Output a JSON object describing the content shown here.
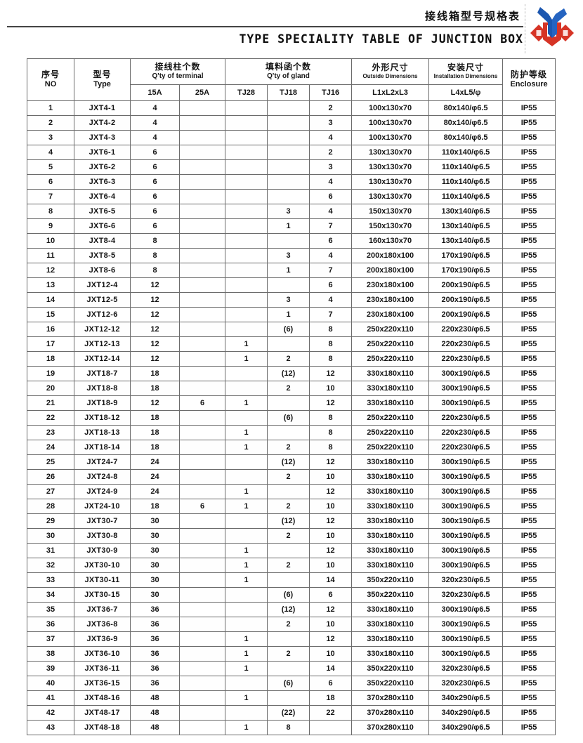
{
  "document": {
    "title_cn": "接线箱型号规格表",
    "title_en": "TYPE SPECIALITY TABLE OF JUNCTION BOX",
    "logo": "company-emblem (red diamonds with blue Y ribbon)",
    "accent_red": "#d harmonized",
    "colors": {
      "logo_red": "#d63426",
      "logo_blue": "#1c57b0",
      "rule": "#444444",
      "grid": "#6b6b6b"
    }
  },
  "table": {
    "header": {
      "no_cn": "序号",
      "no_en": "NO",
      "type_cn": "型号",
      "type_en": "Type",
      "terminal_cn": "接线柱个数",
      "terminal_en": "Q'ty of terminal",
      "terminal_sub": [
        "15A",
        "25A"
      ],
      "gland_cn": "填料函个数",
      "gland_en": "Q'ty of gland",
      "gland_sub": [
        "TJ28",
        "TJ18",
        "TJ16"
      ],
      "outside_cn": "外形尺寸",
      "outside_en": "Outside Dimensions",
      "outside_sub": "L1xL2xL3",
      "install_cn": "安装尺寸",
      "install_en": "Installation Dimensions",
      "install_sub": "L4xL5/φ",
      "enclosure_cn": "防护等级",
      "enclosure_en": "Enclosure"
    },
    "rows": [
      [
        "1",
        "JXT4-1",
        "4",
        "",
        "",
        "",
        "2",
        "100x130x70",
        "80x140/φ6.5",
        "IP55"
      ],
      [
        "2",
        "JXT4-2",
        "4",
        "",
        "",
        "",
        "3",
        "100x130x70",
        "80x140/φ6.5",
        "IP55"
      ],
      [
        "3",
        "JXT4-3",
        "4",
        "",
        "",
        "",
        "4",
        "100x130x70",
        "80x140/φ6.5",
        "IP55"
      ],
      [
        "4",
        "JXT6-1",
        "6",
        "",
        "",
        "",
        "2",
        "130x130x70",
        "110x140/φ6.5",
        "IP55"
      ],
      [
        "5",
        "JXT6-2",
        "6",
        "",
        "",
        "",
        "3",
        "130x130x70",
        "110x140/φ6.5",
        "IP55"
      ],
      [
        "6",
        "JXT6-3",
        "6",
        "",
        "",
        "",
        "4",
        "130x130x70",
        "110x140/φ6.5",
        "IP55"
      ],
      [
        "7",
        "JXT6-4",
        "6",
        "",
        "",
        "",
        "6",
        "130x130x70",
        "110x140/φ6.5",
        "IP55"
      ],
      [
        "8",
        "JXT6-5",
        "6",
        "",
        "",
        "3",
        "4",
        "150x130x70",
        "130x140/φ6.5",
        "IP55"
      ],
      [
        "9",
        "JXT6-6",
        "6",
        "",
        "",
        "1",
        "7",
        "150x130x70",
        "130x140/φ6.5",
        "IP55"
      ],
      [
        "10",
        "JXT8-4",
        "8",
        "",
        "",
        "",
        "6",
        "160x130x70",
        "130x140/φ6.5",
        "IP55"
      ],
      [
        "11",
        "JXT8-5",
        "8",
        "",
        "",
        "3",
        "4",
        "200x180x100",
        "170x190/φ6.5",
        "IP55"
      ],
      [
        "12",
        "JXT8-6",
        "8",
        "",
        "",
        "1",
        "7",
        "200x180x100",
        "170x190/φ6.5",
        "IP55"
      ],
      [
        "13",
        "JXT12-4",
        "12",
        "",
        "",
        "",
        "6",
        "230x180x100",
        "200x190/φ6.5",
        "IP55"
      ],
      [
        "14",
        "JXT12-5",
        "12",
        "",
        "",
        "3",
        "4",
        "230x180x100",
        "200x190/φ6.5",
        "IP55"
      ],
      [
        "15",
        "JXT12-6",
        "12",
        "",
        "",
        "1",
        "7",
        "230x180x100",
        "200x190/φ6.5",
        "IP55"
      ],
      [
        "16",
        "JXT12-12",
        "12",
        "",
        "",
        "(6)",
        "8",
        "250x220x110",
        "220x230/φ6.5",
        "IP55"
      ],
      [
        "17",
        "JXT12-13",
        "12",
        "",
        "1",
        "",
        "8",
        "250x220x110",
        "220x230/φ6.5",
        "IP55"
      ],
      [
        "18",
        "JXT12-14",
        "12",
        "",
        "1",
        "2",
        "8",
        "250x220x110",
        "220x230/φ6.5",
        "IP55"
      ],
      [
        "19",
        "JXT18-7",
        "18",
        "",
        "",
        "(12)",
        "12",
        "330x180x110",
        "300x190/φ6.5",
        "IP55"
      ],
      [
        "20",
        "JXT18-8",
        "18",
        "",
        "",
        "2",
        "10",
        "330x180x110",
        "300x190/φ6.5",
        "IP55"
      ],
      [
        "21",
        "JXT18-9",
        "12",
        "6",
        "1",
        "",
        "12",
        "330x180x110",
        "300x190/φ6.5",
        "IP55"
      ],
      [
        "22",
        "JXT18-12",
        "18",
        "",
        "",
        "(6)",
        "8",
        "250x220x110",
        "220x230/φ6.5",
        "IP55"
      ],
      [
        "23",
        "JXT18-13",
        "18",
        "",
        "1",
        "",
        "8",
        "250x220x110",
        "220x230/φ6.5",
        "IP55"
      ],
      [
        "24",
        "JXT18-14",
        "18",
        "",
        "1",
        "2",
        "8",
        "250x220x110",
        "220x230/φ6.5",
        "IP55"
      ],
      [
        "25",
        "JXT24-7",
        "24",
        "",
        "",
        "(12)",
        "12",
        "330x180x110",
        "300x190/φ6.5",
        "IP55"
      ],
      [
        "26",
        "JXT24-8",
        "24",
        "",
        "",
        "2",
        "10",
        "330x180x110",
        "300x190/φ6.5",
        "IP55"
      ],
      [
        "27",
        "JXT24-9",
        "24",
        "",
        "1",
        "",
        "12",
        "330x180x110",
        "300x190/φ6.5",
        "IP55"
      ],
      [
        "28",
        "JXT24-10",
        "18",
        "6",
        "1",
        "2",
        "10",
        "330x180x110",
        "300x190/φ6.5",
        "IP55"
      ],
      [
        "29",
        "JXT30-7",
        "30",
        "",
        "",
        "(12)",
        "12",
        "330x180x110",
        "300x190/φ6.5",
        "IP55"
      ],
      [
        "30",
        "JXT30-8",
        "30",
        "",
        "",
        "2",
        "10",
        "330x180x110",
        "300x190/φ6.5",
        "IP55"
      ],
      [
        "31",
        "JXT30-9",
        "30",
        "",
        "1",
        "",
        "12",
        "330x180x110",
        "300x190/φ6.5",
        "IP55"
      ],
      [
        "32",
        "JXT30-10",
        "30",
        "",
        "1",
        "2",
        "10",
        "330x180x110",
        "300x190/φ6.5",
        "IP55"
      ],
      [
        "33",
        "JXT30-11",
        "30",
        "",
        "1",
        "",
        "14",
        "350x220x110",
        "320x230/φ6.5",
        "IP55"
      ],
      [
        "34",
        "JXT30-15",
        "30",
        "",
        "",
        "(6)",
        "6",
        "350x220x110",
        "320x230/φ6.5",
        "IP55"
      ],
      [
        "35",
        "JXT36-7",
        "36",
        "",
        "",
        "(12)",
        "12",
        "330x180x110",
        "300x190/φ6.5",
        "IP55"
      ],
      [
        "36",
        "JXT36-8",
        "36",
        "",
        "",
        "2",
        "10",
        "330x180x110",
        "300x190/φ6.5",
        "IP55"
      ],
      [
        "37",
        "JXT36-9",
        "36",
        "",
        "1",
        "",
        "12",
        "330x180x110",
        "300x190/φ6.5",
        "IP55"
      ],
      [
        "38",
        "JXT36-10",
        "36",
        "",
        "1",
        "2",
        "10",
        "330x180x110",
        "300x190/φ6.5",
        "IP55"
      ],
      [
        "39",
        "JXT36-11",
        "36",
        "",
        "1",
        "",
        "14",
        "350x220x110",
        "320x230/φ6.5",
        "IP55"
      ],
      [
        "40",
        "JXT36-15",
        "36",
        "",
        "",
        "(6)",
        "6",
        "350x220x110",
        "320x230/φ6.5",
        "IP55"
      ],
      [
        "41",
        "JXT48-16",
        "48",
        "",
        "1",
        "",
        "18",
        "370x280x110",
        "340x290/φ6.5",
        "IP55"
      ],
      [
        "42",
        "JXT48-17",
        "48",
        "",
        "",
        "(22)",
        "22",
        "370x280x110",
        "340x290/φ6.5",
        "IP55"
      ],
      [
        "43",
        "JXT48-18",
        "48",
        "",
        "1",
        "8",
        "",
        "370x280x110",
        "340x290/φ6.5",
        "IP55"
      ]
    ]
  }
}
